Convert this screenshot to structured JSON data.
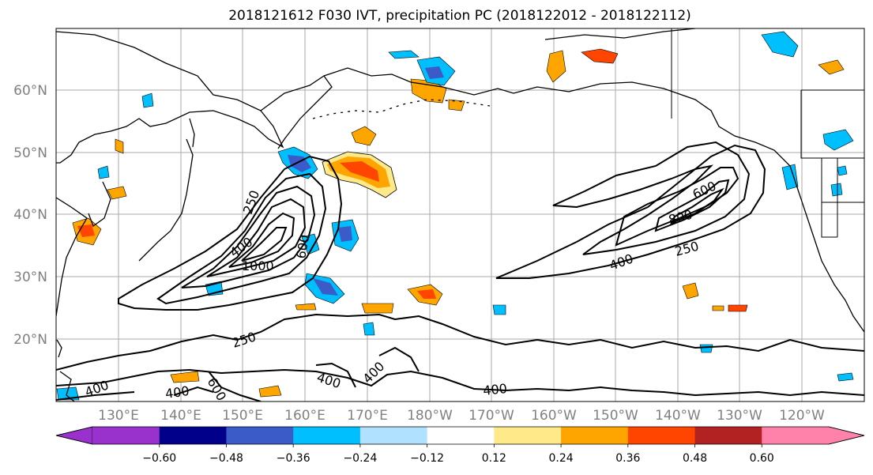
{
  "title": "2018121612 F030 IVT, precipitation PC (2018122012 - 2018122112)",
  "lat_labels": [
    "20°N",
    "30°N",
    "40°N",
    "50°N",
    "60°N"
  ],
  "lon_labels": [
    "130°E",
    "140°E",
    "150°E",
    "160°E",
    "170°E",
    "180°W",
    "170°W",
    "160°W",
    "150°W",
    "140°W",
    "130°W",
    "120°W"
  ],
  "colorbar": {
    "colors": [
      "#9932CC",
      "#00008B",
      "#3A5BC8",
      "#00BFFF",
      "#B0E2FF",
      "#FFFFFF",
      "#FFE989",
      "#FFA500",
      "#FF4500",
      "#B22222",
      "#FF82AB"
    ],
    "tick_labels": [
      "−0.60",
      "−0.48",
      "−0.36",
      "−0.24",
      "−0.12",
      "0.12",
      "0.24",
      "0.36",
      "0.48",
      "0.60"
    ]
  },
  "contour_labels": [
    {
      "text": "250"
    },
    {
      "text": "400"
    },
    {
      "text": "1000"
    },
    {
      "text": "600"
    },
    {
      "text": "250"
    },
    {
      "text": "400"
    },
    {
      "text": "400"
    },
    {
      "text": "600"
    },
    {
      "text": "400"
    },
    {
      "text": "400"
    },
    {
      "text": "600"
    },
    {
      "text": "800"
    },
    {
      "text": "250"
    },
    {
      "text": "400"
    }
  ]
}
